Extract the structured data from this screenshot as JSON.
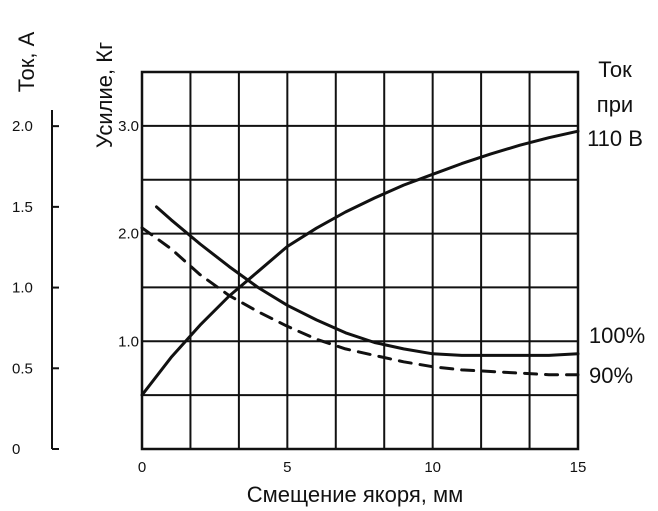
{
  "chart_data": {
    "type": "line",
    "xlabel": "Смещение якоря, мм",
    "ylabel": "Усилие, Кг",
    "y2label": "Ток, А",
    "xlim": [
      0,
      15
    ],
    "ylim": [
      0,
      3.5
    ],
    "y2lim": [
      0,
      2.1
    ],
    "x_ticks": [
      "0",
      "5",
      "10",
      "15"
    ],
    "y_ticks": [
      "1.0",
      "2.0",
      "3.0"
    ],
    "y2_ticks": [
      "0",
      "0.5",
      "1.0",
      "1.5",
      "2.0"
    ],
    "grid": true,
    "series": [
      {
        "name": "Ток при 110 В",
        "axis": "left",
        "style": "solid",
        "x": [
          0,
          1,
          2,
          3,
          4,
          5,
          6,
          7,
          8,
          9,
          10,
          11,
          12,
          13,
          14,
          15
        ],
        "y": [
          0.5,
          0.85,
          1.15,
          1.42,
          1.65,
          1.88,
          2.05,
          2.2,
          2.33,
          2.45,
          2.55,
          2.65,
          2.74,
          2.82,
          2.89,
          2.95
        ]
      },
      {
        "name": "100%",
        "axis": "right",
        "style": "solid",
        "x": [
          0.5,
          1,
          2,
          3,
          4,
          5,
          6,
          7,
          8,
          9,
          10,
          11,
          12,
          13,
          14,
          15
        ],
        "y": [
          1.5,
          1.42,
          1.27,
          1.13,
          1.0,
          0.89,
          0.8,
          0.72,
          0.66,
          0.62,
          0.59,
          0.58,
          0.58,
          0.58,
          0.58,
          0.59
        ]
      },
      {
        "name": "90%",
        "axis": "right",
        "style": "dashed",
        "x": [
          0,
          1,
          2,
          3,
          4,
          5,
          6,
          7,
          8,
          9,
          10,
          11,
          12,
          13,
          14,
          15
        ],
        "y": [
          1.37,
          1.24,
          1.08,
          0.95,
          0.85,
          0.76,
          0.68,
          0.62,
          0.58,
          0.54,
          0.51,
          0.49,
          0.48,
          0.47,
          0.46,
          0.46
        ]
      }
    ],
    "annotations": {
      "current_label": [
        "Ток",
        "при",
        "110 В"
      ],
      "pct100": "100%",
      "pct90": "90%"
    }
  }
}
